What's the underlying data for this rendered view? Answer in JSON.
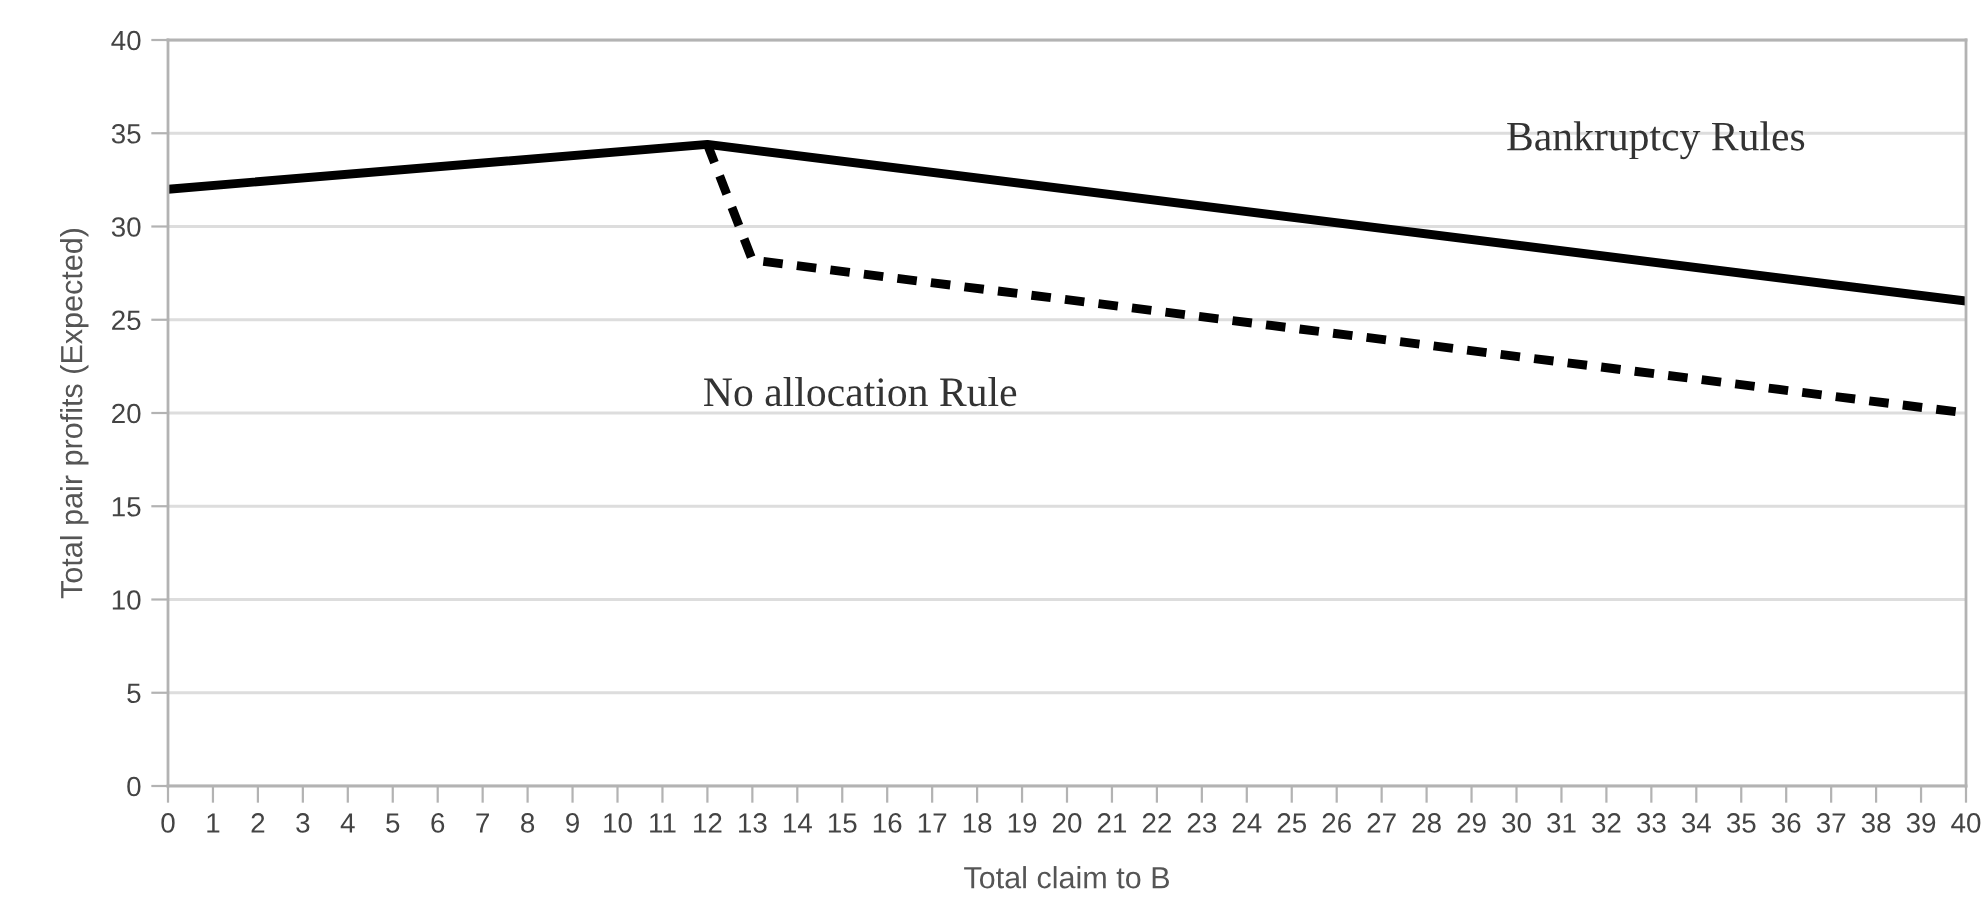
{
  "chart_data": {
    "type": "line",
    "xlabel": "Total claim to B",
    "ylabel": "Total pair profits (Expected)",
    "xlim": [
      0,
      40
    ],
    "xticks": [
      0,
      1,
      2,
      3,
      4,
      5,
      6,
      7,
      8,
      9,
      10,
      11,
      12,
      13,
      14,
      15,
      16,
      17,
      18,
      19,
      20,
      21,
      22,
      23,
      24,
      25,
      26,
      27,
      28,
      29,
      30,
      31,
      32,
      33,
      34,
      35,
      36,
      37,
      38,
      39,
      40
    ],
    "ylim": [
      0,
      40
    ],
    "yticks": [
      0,
      5,
      10,
      15,
      20,
      25,
      30,
      35,
      40
    ],
    "grid": "y",
    "series": [
      {
        "name": "Bankruptcy Rules",
        "color": "#000000",
        "line_style": "solid",
        "x": [
          0,
          12,
          40
        ],
        "values": [
          32,
          34.4,
          26
        ]
      },
      {
        "name": "No allocation Rule",
        "color": "#000000",
        "line_style": "dashed",
        "x": [
          12,
          13,
          40
        ],
        "values": [
          34.4,
          28.2,
          20
        ]
      }
    ]
  }
}
